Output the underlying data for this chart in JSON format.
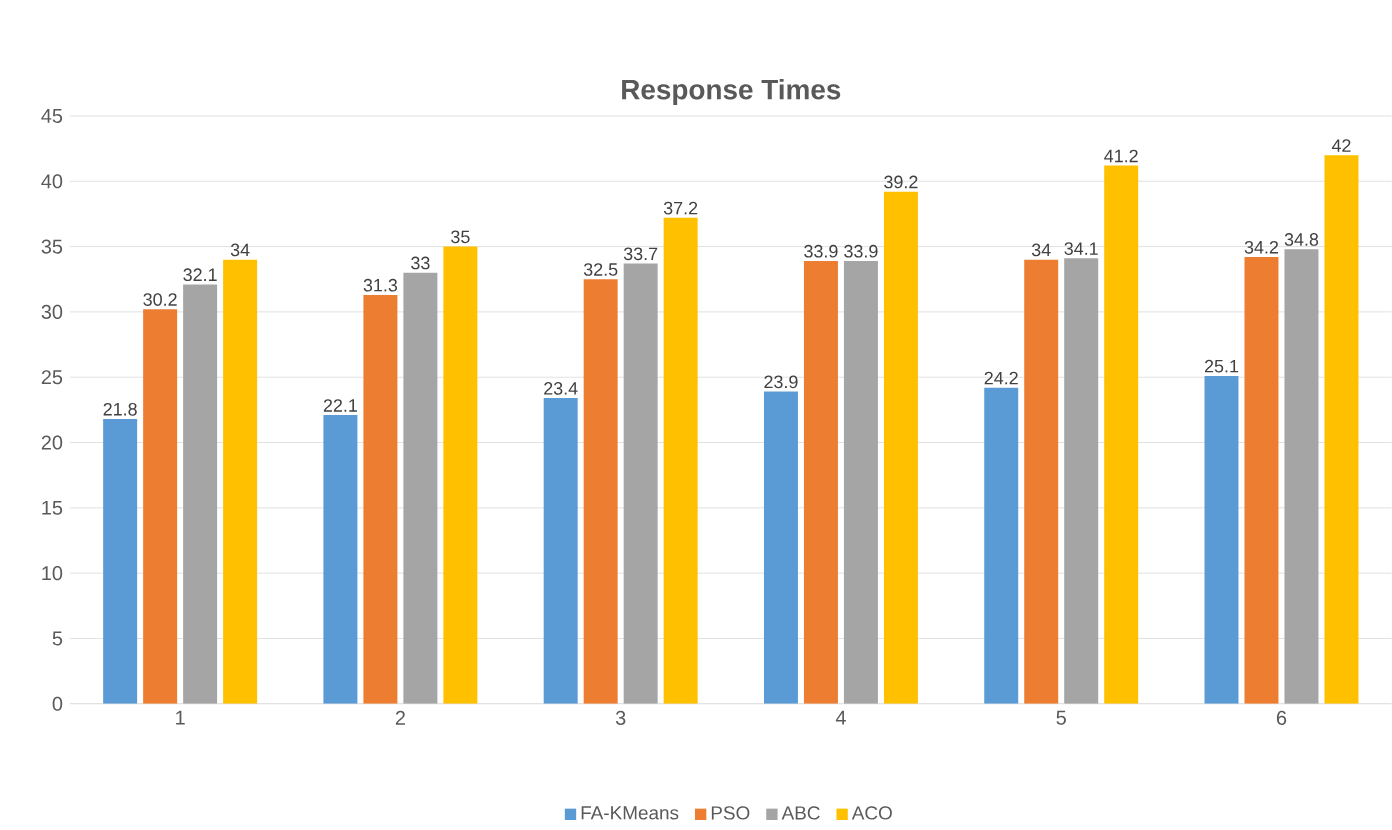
{
  "chart_data": {
    "type": "bar",
    "title": "Response Times",
    "categories": [
      "1",
      "2",
      "3",
      "4",
      "5",
      "6"
    ],
    "series": [
      {
        "name": "FA-KMeans",
        "color": "#5b9bd5",
        "values": [
          21.8,
          22.1,
          23.4,
          23.9,
          24.2,
          25.1
        ]
      },
      {
        "name": "PSO",
        "color": "#ed7d31",
        "values": [
          30.2,
          31.3,
          32.5,
          33.9,
          34,
          34.2
        ]
      },
      {
        "name": "ABC",
        "color": "#a5a5a5",
        "values": [
          32.1,
          33,
          33.7,
          33.9,
          34.1,
          34.8
        ]
      },
      {
        "name": "ACO",
        "color": "#ffc000",
        "values": [
          34,
          35,
          37.2,
          39.2,
          41.2,
          42
        ]
      }
    ],
    "ylim": [
      0,
      45
    ],
    "yticks": [
      0,
      5,
      10,
      15,
      20,
      25,
      30,
      35,
      40,
      45
    ],
    "grid": "y",
    "legend": "bottom",
    "data_labels": true
  }
}
